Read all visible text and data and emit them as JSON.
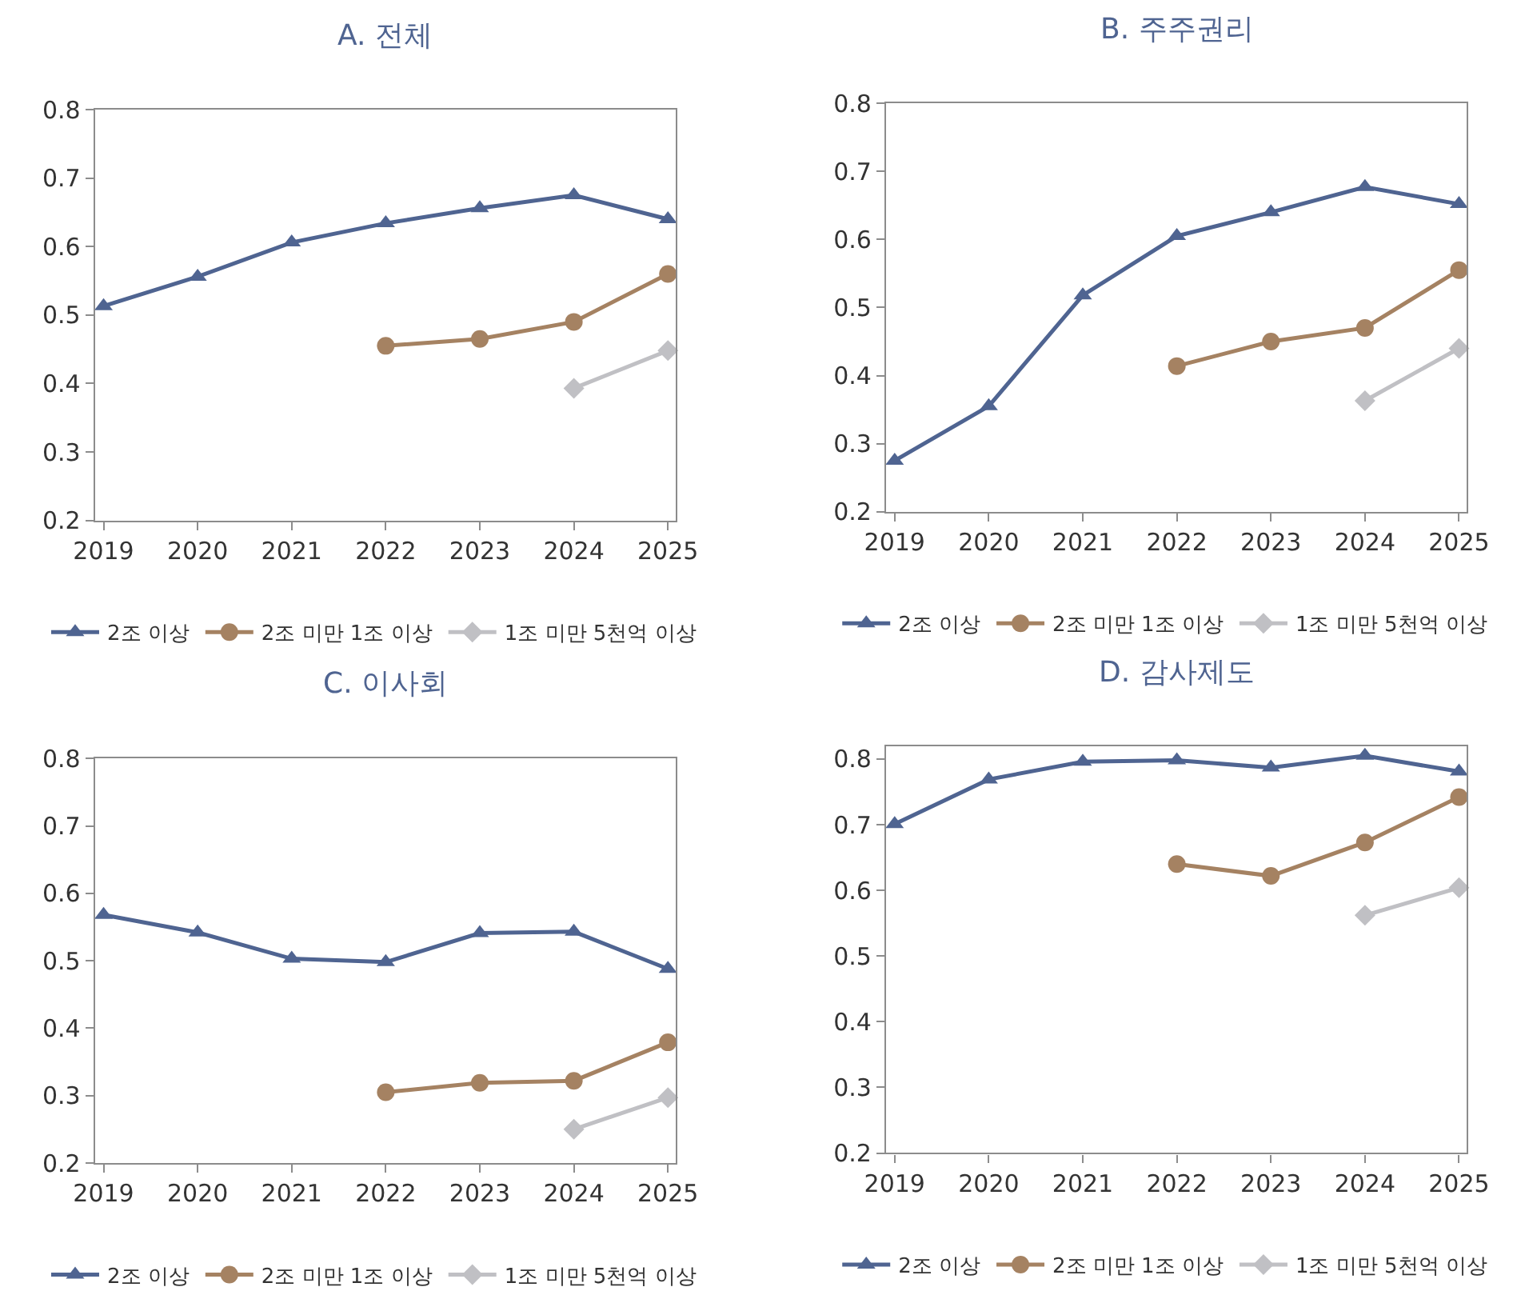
{
  "chart_data": [
    {
      "type": "line",
      "title": "A. 전체",
      "x": [
        2019,
        2020,
        2021,
        2022,
        2023,
        2024,
        2025
      ],
      "xlim": [
        2018.91,
        2025.08
      ],
      "xticks": [
        2019,
        2020,
        2021,
        2022,
        2023,
        2024,
        2025
      ],
      "ylim": [
        0.2,
        0.8
      ],
      "yticks": [
        0.2,
        0.3,
        0.4,
        0.5,
        0.6,
        0.7,
        0.8
      ],
      "legend": "bottom",
      "line_style": "solid",
      "series": [
        {
          "name": "2조 이상",
          "color": "#4f6491",
          "marker": "triangle",
          "values": [
            0.513,
            0.556,
            0.606,
            0.634,
            0.656,
            0.675,
            0.64
          ]
        },
        {
          "name": "2조 미만 1조 이상",
          "color": "#a58262",
          "marker": "circle",
          "values": [
            null,
            null,
            null,
            0.455,
            0.465,
            0.49,
            0.56
          ]
        },
        {
          "name": "1조 미만 5천억 이상",
          "color": "#c0c0c4",
          "marker": "diamond",
          "values": [
            null,
            null,
            null,
            null,
            null,
            0.393,
            0.448
          ]
        }
      ]
    },
    {
      "type": "line",
      "title": "B. 주주권리",
      "x": [
        2019,
        2020,
        2021,
        2022,
        2023,
        2024,
        2025
      ],
      "xlim": [
        2018.91,
        2025.08
      ],
      "xticks": [
        2019,
        2020,
        2021,
        2022,
        2023,
        2024,
        2025
      ],
      "ylim": [
        0.2,
        0.8
      ],
      "yticks": [
        0.2,
        0.3,
        0.4,
        0.5,
        0.6,
        0.7,
        0.8
      ],
      "legend": "bottom",
      "line_style": "solid",
      "series": [
        {
          "name": "2조 이상",
          "color": "#4f6491",
          "marker": "triangle",
          "values": [
            0.275,
            0.355,
            0.518,
            0.605,
            0.64,
            0.677,
            0.652
          ]
        },
        {
          "name": "2조 미만 1조 이상",
          "color": "#a58262",
          "marker": "circle",
          "values": [
            null,
            null,
            null,
            0.414,
            0.45,
            0.47,
            0.555
          ]
        },
        {
          "name": "1조 미만 5천억 이상",
          "color": "#c0c0c4",
          "marker": "diamond",
          "values": [
            null,
            null,
            null,
            null,
            null,
            0.363,
            0.44
          ]
        }
      ]
    },
    {
      "type": "line",
      "title": "C. 이사회",
      "x": [
        2019,
        2020,
        2021,
        2022,
        2023,
        2024,
        2025
      ],
      "xlim": [
        2018.91,
        2025.08
      ],
      "xticks": [
        2019,
        2020,
        2021,
        2022,
        2023,
        2024,
        2025
      ],
      "ylim": [
        0.2,
        0.8
      ],
      "yticks": [
        0.2,
        0.3,
        0.4,
        0.5,
        0.6,
        0.7,
        0.8
      ],
      "legend": "bottom",
      "line_style": "solid",
      "series": [
        {
          "name": "2조 이상",
          "color": "#4f6491",
          "marker": "triangle",
          "values": [
            0.568,
            0.542,
            0.503,
            0.498,
            0.541,
            0.543,
            0.488
          ]
        },
        {
          "name": "2조 미만 1조 이상",
          "color": "#a58262",
          "marker": "circle",
          "values": [
            null,
            null,
            null,
            0.305,
            0.319,
            0.322,
            0.379
          ]
        },
        {
          "name": "1조 미만 5천억 이상",
          "color": "#c0c0c4",
          "marker": "diamond",
          "values": [
            null,
            null,
            null,
            null,
            null,
            0.25,
            0.297
          ]
        }
      ]
    },
    {
      "type": "line",
      "title": "D. 감사제도",
      "x": [
        2019,
        2020,
        2021,
        2022,
        2023,
        2024,
        2025
      ],
      "xlim": [
        2018.91,
        2025.08
      ],
      "xticks": [
        2019,
        2020,
        2021,
        2022,
        2023,
        2024,
        2025
      ],
      "ylim": [
        0.2,
        0.82
      ],
      "yticks": [
        0.2,
        0.3,
        0.4,
        0.5,
        0.6,
        0.7,
        0.8
      ],
      "legend": "bottom",
      "line_style": "solid",
      "series": [
        {
          "name": "2조 이상",
          "color": "#4f6491",
          "marker": "triangle",
          "values": [
            0.701,
            0.769,
            0.796,
            0.798,
            0.787,
            0.805,
            0.781
          ]
        },
        {
          "name": "2조 미만 1조 이상",
          "color": "#a58262",
          "marker": "circle",
          "values": [
            null,
            null,
            null,
            0.64,
            0.622,
            0.673,
            0.742
          ]
        },
        {
          "name": "1조 미만 5천억 이상",
          "color": "#c0c0c4",
          "marker": "diamond",
          "values": [
            null,
            null,
            null,
            null,
            null,
            0.562,
            0.604
          ]
        }
      ]
    }
  ]
}
